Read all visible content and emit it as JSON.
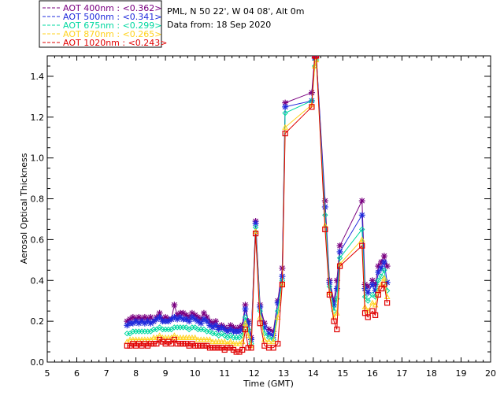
{
  "chart_data": {
    "type": "line",
    "xlabel": "Time (GMT)",
    "ylabel": "Aerosol Optical Thickness",
    "xlim": [
      5,
      20
    ],
    "ylim": [
      0,
      1.5
    ],
    "xticks": [
      5,
      6,
      7,
      8,
      9,
      10,
      11,
      12,
      13,
      14,
      15,
      16,
      17,
      18,
      19,
      20
    ],
    "yticks": [
      "0.0",
      "0.2",
      "0.4",
      "0.6",
      "0.8",
      "1.0",
      "1.2",
      "1.4"
    ],
    "grid": false,
    "legend_position": "top-left",
    "info": {
      "location": "PML, N 50 22', W 04 08', Alt 0m",
      "date": "Data from: 18 Sep 2020"
    },
    "x": [
      7.7,
      7.8,
      7.9,
      8.0,
      8.1,
      8.2,
      8.3,
      8.4,
      8.5,
      8.6,
      8.7,
      8.8,
      8.9,
      9.0,
      9.1,
      9.2,
      9.3,
      9.4,
      9.5,
      9.6,
      9.7,
      9.8,
      9.9,
      10.0,
      10.1,
      10.2,
      10.3,
      10.4,
      10.5,
      10.6,
      10.7,
      10.8,
      10.9,
      11.0,
      11.1,
      11.2,
      11.3,
      11.4,
      11.5,
      11.6,
      11.7,
      11.8,
      11.9,
      12.05,
      12.2,
      12.35,
      12.5,
      12.65,
      12.8,
      12.95,
      13.05,
      13.95,
      14.05,
      14.1,
      14.4,
      14.55,
      14.7,
      14.8,
      14.9,
      15.65,
      15.75,
      15.85,
      16.0,
      16.1,
      16.2,
      16.3,
      16.4,
      16.5
    ],
    "series": [
      {
        "name": "AOT  400nm : <0.362>",
        "color": "#7a0080",
        "marker": "star",
        "values": [
          0.2,
          0.21,
          0.22,
          0.21,
          0.22,
          0.21,
          0.22,
          0.21,
          0.22,
          0.2,
          0.22,
          0.24,
          0.21,
          0.22,
          0.21,
          0.21,
          0.28,
          0.23,
          0.24,
          0.24,
          0.23,
          0.22,
          0.24,
          0.23,
          0.22,
          0.21,
          0.24,
          0.22,
          0.2,
          0.19,
          0.2,
          0.17,
          0.18,
          0.17,
          0.16,
          0.18,
          0.17,
          0.16,
          0.17,
          0.18,
          0.28,
          0.2,
          0.12,
          0.69,
          0.28,
          0.19,
          0.16,
          0.15,
          0.3,
          0.46,
          1.27,
          1.32,
          1.5,
          1.5,
          0.79,
          0.4,
          0.3,
          0.4,
          0.57,
          0.79,
          0.38,
          0.37,
          0.4,
          0.38,
          0.47,
          0.49,
          0.52,
          0.47
        ]
      },
      {
        "name": "AOT  500nm : <0.341>",
        "color": "#1f2bdc",
        "marker": "star",
        "values": [
          0.18,
          0.19,
          0.19,
          0.2,
          0.19,
          0.2,
          0.19,
          0.2,
          0.19,
          0.2,
          0.21,
          0.22,
          0.2,
          0.2,
          0.2,
          0.21,
          0.22,
          0.21,
          0.22,
          0.21,
          0.21,
          0.2,
          0.22,
          0.21,
          0.2,
          0.19,
          0.21,
          0.2,
          0.18,
          0.17,
          0.18,
          0.16,
          0.17,
          0.16,
          0.15,
          0.16,
          0.15,
          0.15,
          0.15,
          0.16,
          0.26,
          0.19,
          0.11,
          0.68,
          0.27,
          0.17,
          0.14,
          0.13,
          0.29,
          0.42,
          1.25,
          1.28,
          1.49,
          1.5,
          0.76,
          0.39,
          0.28,
          0.36,
          0.54,
          0.72,
          0.36,
          0.34,
          0.38,
          0.35,
          0.44,
          0.46,
          0.49,
          0.39
        ]
      },
      {
        "name": "AOT  675nm : <0.299>",
        "color": "#00d8a0",
        "marker": "diamond",
        "values": [
          0.14,
          0.14,
          0.15,
          0.15,
          0.15,
          0.15,
          0.15,
          0.15,
          0.15,
          0.16,
          0.16,
          0.17,
          0.16,
          0.16,
          0.16,
          0.16,
          0.17,
          0.17,
          0.17,
          0.17,
          0.17,
          0.16,
          0.17,
          0.17,
          0.16,
          0.16,
          0.16,
          0.15,
          0.15,
          0.14,
          0.14,
          0.13,
          0.14,
          0.13,
          0.12,
          0.13,
          0.12,
          0.12,
          0.12,
          0.13,
          0.22,
          0.16,
          0.09,
          0.66,
          0.25,
          0.14,
          0.12,
          0.11,
          0.25,
          0.4,
          1.22,
          1.28,
          1.45,
          1.48,
          0.72,
          0.37,
          0.25,
          0.31,
          0.51,
          0.65,
          0.32,
          0.3,
          0.33,
          0.32,
          0.4,
          0.42,
          0.45,
          0.35
        ]
      },
      {
        "name": "AOT  870nm : <0.265>",
        "color": "#ffd21e",
        "marker": "triangle",
        "values": [
          0.1,
          0.11,
          0.11,
          0.11,
          0.11,
          0.11,
          0.11,
          0.11,
          0.11,
          0.12,
          0.12,
          0.13,
          0.12,
          0.12,
          0.12,
          0.12,
          0.13,
          0.12,
          0.12,
          0.12,
          0.12,
          0.12,
          0.12,
          0.12,
          0.11,
          0.11,
          0.11,
          0.11,
          0.11,
          0.1,
          0.1,
          0.1,
          0.1,
          0.1,
          0.09,
          0.1,
          0.09,
          0.09,
          0.09,
          0.1,
          0.19,
          0.13,
          0.08,
          0.64,
          0.22,
          0.11,
          0.1,
          0.1,
          0.22,
          0.38,
          1.15,
          1.26,
          1.45,
          1.48,
          0.67,
          0.34,
          0.22,
          0.24,
          0.48,
          0.6,
          0.27,
          0.25,
          0.29,
          0.28,
          0.35,
          0.38,
          0.41,
          0.32
        ]
      },
      {
        "name": "AOT 1020nm : <0.243>",
        "color": "#e00000",
        "marker": "square",
        "values": [
          0.08,
          0.08,
          0.09,
          0.08,
          0.09,
          0.08,
          0.09,
          0.08,
          0.09,
          0.09,
          0.09,
          0.11,
          0.1,
          0.09,
          0.1,
          0.09,
          0.11,
          0.09,
          0.09,
          0.09,
          0.09,
          0.08,
          0.09,
          0.08,
          0.08,
          0.08,
          0.08,
          0.08,
          0.07,
          0.07,
          0.07,
          0.07,
          0.07,
          0.06,
          0.07,
          0.07,
          0.06,
          0.05,
          0.05,
          0.06,
          0.16,
          0.07,
          0.07,
          0.63,
          0.19,
          0.08,
          0.07,
          0.07,
          0.09,
          0.38,
          1.12,
          1.25,
          1.5,
          1.5,
          0.65,
          0.33,
          0.2,
          0.16,
          0.47,
          0.57,
          0.24,
          0.22,
          0.25,
          0.23,
          0.33,
          0.36,
          0.38,
          0.29
        ]
      }
    ]
  }
}
